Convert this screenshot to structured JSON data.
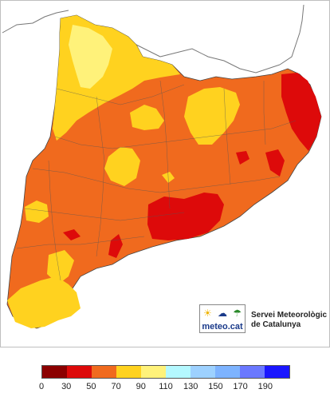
{
  "map": {
    "colors": {
      "sea": "#ffffff",
      "outline": "#555555",
      "border_neighbors": "#777777",
      "ring_yellow": "#ffd21f",
      "pale_yellow": "#fff27a",
      "orange": "#f06a1e",
      "red": "#dd0a0a",
      "dark_red": "#a60000"
    }
  },
  "branding": {
    "logo_text": "meteo.cat",
    "logo_icons": [
      "sun-icon",
      "cloud-icon",
      "rain-icon"
    ],
    "org_line1": "Servei Meteorològic",
    "org_line2": "de Catalunya"
  },
  "legend": {
    "colors": [
      "#8b0000",
      "#dd0a0a",
      "#f06a1e",
      "#ffd21f",
      "#fff27a",
      "#b4f8ff",
      "#9dd1ff",
      "#7db3ff",
      "#6a78ff",
      "#1a16ff"
    ],
    "ticks": [
      "0",
      "30",
      "50",
      "70",
      "90",
      "110",
      "130",
      "150",
      "170",
      "190"
    ]
  }
}
